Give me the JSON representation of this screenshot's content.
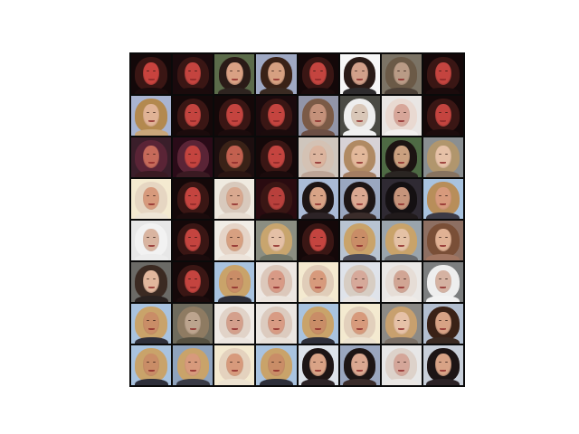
{
  "image": {
    "description_rows": 8,
    "description_cols": 8
  },
  "palette": {
    "bg_dark": "#120708",
    "bg_maroon": "#2a0b10",
    "bg_light": "#e9e6e4",
    "bg_cream": "#f4ead0",
    "bg_blue": "#a9c3df",
    "bg_grey": "#7a7f83",
    "bg_white": "#f7f7f7",
    "skin_red": "#c4443f",
    "skin_warm": "#d79a7c",
    "skin_pale": "#e8c7b4",
    "skin_tan": "#c98d67",
    "hair_dark": "#2a1b17",
    "hair_brown": "#6b4632",
    "hair_blond": "#c9a36a",
    "hair_red": "#7e2a25",
    "hair_white": "#eeeeee"
  },
  "tiles": [
    {
      "bg": "#130809",
      "hair": "#3a1614",
      "skin": "#c8433e",
      "shirt": "#1b0b0c"
    },
    {
      "bg": "#1a0a0d",
      "hair": "#3a1614",
      "skin": "#c4443f",
      "shirt": "#1b0b0c"
    },
    {
      "bg": "#5b6b4a",
      "hair": "#2a1b17",
      "skin": "#d9a184",
      "shirt": "#2e2420"
    },
    {
      "bg": "#9fa9c4",
      "hair": "#3a2217",
      "skin": "#d6a081",
      "shirt": "#3a2a22"
    },
    {
      "bg": "#140809",
      "hair": "#3a1614",
      "skin": "#c4443f",
      "shirt": "#1b0b0c"
    },
    {
      "bg": "#f7f7f7",
      "hair": "#2a1b17",
      "skin": "#d2a08a",
      "shirt": "#2d2b2d"
    },
    {
      "bg": "#7b7365",
      "hair": "#6b5a47",
      "skin": "#b99b86",
      "shirt": "#4c4037"
    },
    {
      "bg": "#140809",
      "hair": "#3a1614",
      "skin": "#c4443f",
      "shirt": "#1b0b0c"
    },
    {
      "bg": "#a9b4d1",
      "hair": "#b3894f",
      "skin": "#e0b396",
      "shirt": "#c9a77b"
    },
    {
      "bg": "#140809",
      "hair": "#3a1614",
      "skin": "#c4443f",
      "shirt": "#1b0b0c"
    },
    {
      "bg": "#140809",
      "hair": "#3a1614",
      "skin": "#c4443f",
      "shirt": "#1b0b0c"
    },
    {
      "bg": "#1a0a0d",
      "hair": "#3a1614",
      "skin": "#c4443f",
      "shirt": "#1b0b0c"
    },
    {
      "bg": "#9295a8",
      "hair": "#7b5a46",
      "skin": "#c4917a",
      "shirt": "#6c4f45"
    },
    {
      "bg": "#4a4a44",
      "hair": "#eeeeee",
      "skin": "#d9c7b8",
      "shirt": "#f1f1f1"
    },
    {
      "bg": "#e9e6e4",
      "hair": "#e9d9d1",
      "skin": "#d7a699",
      "shirt": "#f2f0ee"
    },
    {
      "bg": "#140809",
      "hair": "#3a1614",
      "skin": "#c4443f",
      "shirt": "#1b0b0c"
    },
    {
      "bg": "#3a1e2a",
      "hair": "#5a2436",
      "skin": "#c66a5a",
      "shirt": "#3a1a22"
    },
    {
      "bg": "#2a0b18",
      "hair": "#5a2436",
      "skin": "#c4443f",
      "shirt": "#3a1a22"
    },
    {
      "bg": "#1c0e0f",
      "hair": "#3a2217",
      "skin": "#c2604f",
      "shirt": "#2a1512"
    },
    {
      "bg": "#140809",
      "hair": "#3a1614",
      "skin": "#c4443f",
      "shirt": "#1b0b0c"
    },
    {
      "bg": "#cfc6bd",
      "hair": "#d4c2b4",
      "skin": "#dcb49e",
      "shirt": "#bda597"
    },
    {
      "bg": "#d7d2d6",
      "hair": "#b08a63",
      "skin": "#e2b89a",
      "shirt": "#a47e63"
    },
    {
      "bg": "#4e6a44",
      "hair": "#1c1412",
      "skin": "#caa07f",
      "shirt": "#2a2522"
    },
    {
      "bg": "#8a8f92",
      "hair": "#b1966d",
      "skin": "#e6c1a7",
      "shirt": "#877360"
    },
    {
      "bg": "#f4ead0",
      "hair": "#e6d6c2",
      "skin": "#d79a7c",
      "shirt": "#efe6d6"
    },
    {
      "bg": "#140809",
      "hair": "#3a1614",
      "skin": "#c4443f",
      "shirt": "#1b0b0c"
    },
    {
      "bg": "#efeae0",
      "hair": "#d8c9bc",
      "skin": "#d8a88f",
      "shirt": "#e7ddd1"
    },
    {
      "bg": "#2a0b10",
      "hair": "#3a1614",
      "skin": "#b8403c",
      "shirt": "#1b0b0c"
    },
    {
      "bg": "#aabbd6",
      "hair": "#1d1515",
      "skin": "#d8a386",
      "shirt": "#2c2326"
    },
    {
      "bg": "#9aa7c0",
      "hair": "#1d1515",
      "skin": "#dba891",
      "shirt": "#3a2c2a"
    },
    {
      "bg": "#2f2a33",
      "hair": "#141012",
      "skin": "#c6947b",
      "shirt": "#201a1b"
    },
    {
      "bg": "#a9c3df",
      "hair": "#b88e5a",
      "skin": "#d79a7c",
      "shirt": "#3b3a45"
    },
    {
      "bg": "#e7e7e7",
      "hair": "#f2f2f2",
      "skin": "#d9b4a0",
      "shirt": "#ececec"
    },
    {
      "bg": "#140809",
      "hair": "#3a1614",
      "skin": "#c4443f",
      "shirt": "#1b0b0c"
    },
    {
      "bg": "#f1ede6",
      "hair": "#e5d4c7",
      "skin": "#d7a081",
      "shirt": "#ece3da"
    },
    {
      "bg": "#8b8e82",
      "hair": "#c8a56e",
      "skin": "#e4c0a6",
      "shirt": "#707568"
    },
    {
      "bg": "#140809",
      "hair": "#3a1614",
      "skin": "#c4443f",
      "shirt": "#1b0b0c"
    },
    {
      "bg": "#b8c3d1",
      "hair": "#c9a36a",
      "skin": "#c98d67",
      "shirt": "#4a4a55"
    },
    {
      "bg": "#9aa4ac",
      "hair": "#c9a36a",
      "skin": "#e4c1a5",
      "shirt": "#6a6c70"
    },
    {
      "bg": "#8d6f62",
      "hair": "#7a4f37",
      "skin": "#e0b194",
      "shirt": "#a17561"
    },
    {
      "bg": "#6b6a66",
      "hair": "#3b2a22",
      "skin": "#e2b79d",
      "shirt": "#2a2220"
    },
    {
      "bg": "#140809",
      "hair": "#3a1614",
      "skin": "#c4443f",
      "shirt": "#1b0b0c"
    },
    {
      "bg": "#a9c3df",
      "hair": "#c9a36a",
      "skin": "#c98d67",
      "shirt": "#2e2f3a"
    },
    {
      "bg": "#ede7e2",
      "hair": "#dcc8bb",
      "skin": "#d89a86",
      "shirt": "#ebe4dd"
    },
    {
      "bg": "#f4ead0",
      "hair": "#e0cdb9",
      "skin": "#d79a7c",
      "shirt": "#ede3d2"
    },
    {
      "bg": "#dfe3ea",
      "hair": "#d7cdc3",
      "skin": "#d6a99a",
      "shirt": "#e8e4e2"
    },
    {
      "bg": "#eae8e6",
      "hair": "#e6ddd6",
      "skin": "#d1a594",
      "shirt": "#efebe7"
    },
    {
      "bg": "#7c7e7f",
      "hair": "#eeeeee",
      "skin": "#d5b2a2",
      "shirt": "#f2f2f2"
    },
    {
      "bg": "#a9c3df",
      "hair": "#c9a36a",
      "skin": "#c98d67",
      "shirt": "#2e2f3a"
    },
    {
      "bg": "#6e6b5d",
      "hair": "#8e7b62",
      "skin": "#bca48e",
      "shirt": "#565142"
    },
    {
      "bg": "#f0ebe6",
      "hair": "#e1d3c8",
      "skin": "#d4a08c",
      "shirt": "#ece6e0"
    },
    {
      "bg": "#ebe6e1",
      "hair": "#dccbbf",
      "skin": "#d89b84",
      "shirt": "#e9e1d9"
    },
    {
      "bg": "#a9c3df",
      "hair": "#c9a36a",
      "skin": "#c98d67",
      "shirt": "#2e2f3a"
    },
    {
      "bg": "#f4ead0",
      "hair": "#e2d0bc",
      "skin": "#d79a7c",
      "shirt": "#ede3d2"
    },
    {
      "bg": "#8c8a86",
      "hair": "#c8a06e",
      "skin": "#e6c1a7",
      "shirt": "#7a6f66"
    },
    {
      "bg": "#b3bfd0",
      "hair": "#3a2217",
      "skin": "#d7a285",
      "shirt": "#3a2a22"
    },
    {
      "bg": "#a9c3df",
      "hair": "#c9a36a",
      "skin": "#c98d67",
      "shirt": "#2e2f3a"
    },
    {
      "bg": "#8fa3bd",
      "hair": "#c9a36a",
      "skin": "#d79a7c",
      "shirt": "#3a3b46"
    },
    {
      "bg": "#f4ead0",
      "hair": "#e4d2be",
      "skin": "#d79a7c",
      "shirt": "#ede3d2"
    },
    {
      "bg": "#a9c3df",
      "hair": "#c9a36a",
      "skin": "#c98d67",
      "shirt": "#2e2f3a"
    },
    {
      "bg": "#dde3ea",
      "hair": "#1d1515",
      "skin": "#d9a386",
      "shirt": "#2c2326"
    },
    {
      "bg": "#9aa6bf",
      "hair": "#1d1515",
      "skin": "#dba891",
      "shirt": "#3a2c2a"
    },
    {
      "bg": "#e7e7e7",
      "hair": "#ddd2ca",
      "skin": "#d4a699",
      "shirt": "#ebe7e4"
    },
    {
      "bg": "#c9d0da",
      "hair": "#1d1515",
      "skin": "#d8a386",
      "shirt": "#2c2326"
    }
  ]
}
